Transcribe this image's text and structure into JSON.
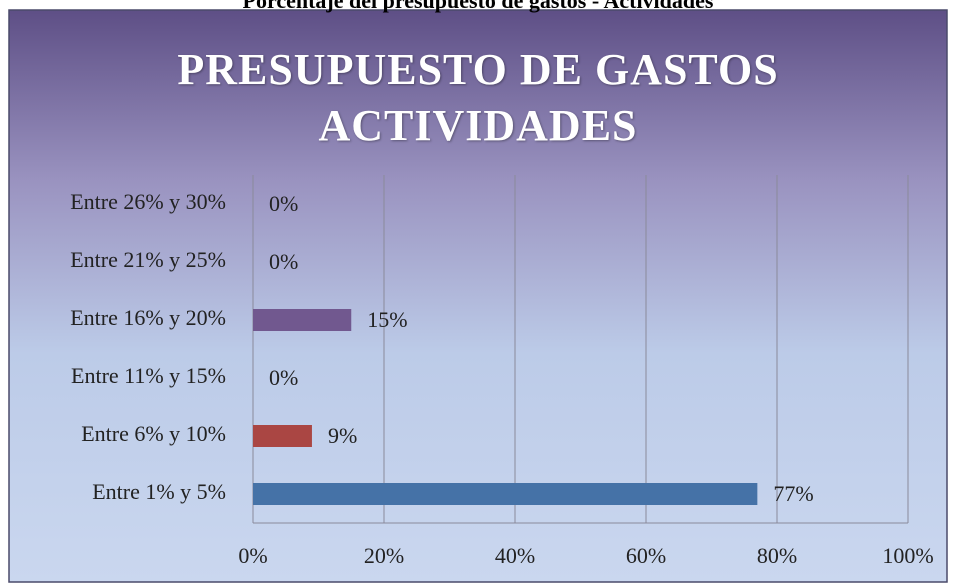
{
  "chart_data": {
    "type": "bar",
    "orientation": "horizontal",
    "caption": "Porcentaje del presupuesto de gastos - Actividades",
    "title": "PRESUPUESTO DE GASTOS ACTIVIDADES",
    "categories": [
      "Entre 1% y 5%",
      "Entre 6% y 10%",
      "Entre 11% y 15%",
      "Entre 16% y 20%",
      "Entre 21% y 25%",
      "Entre 26% y 30%"
    ],
    "values": [
      77,
      9,
      0,
      15,
      0,
      0
    ],
    "value_labels": [
      "77%",
      "9%",
      "0%",
      "15%",
      "0%",
      "0%"
    ],
    "colors": [
      "#4572a7",
      "#aa4643",
      "#89a54e",
      "#71588f",
      "#4198af",
      "#db843d"
    ],
    "xlim": [
      0,
      100
    ],
    "xticks": [
      {
        "value": 0,
        "label": "0%"
      },
      {
        "value": 20,
        "label": "20%"
      },
      {
        "value": 40,
        "label": "40%"
      },
      {
        "value": 60,
        "label": "60%"
      },
      {
        "value": 80,
        "label": "80%"
      },
      {
        "value": 100,
        "label": "100%"
      }
    ],
    "grid": true
  }
}
